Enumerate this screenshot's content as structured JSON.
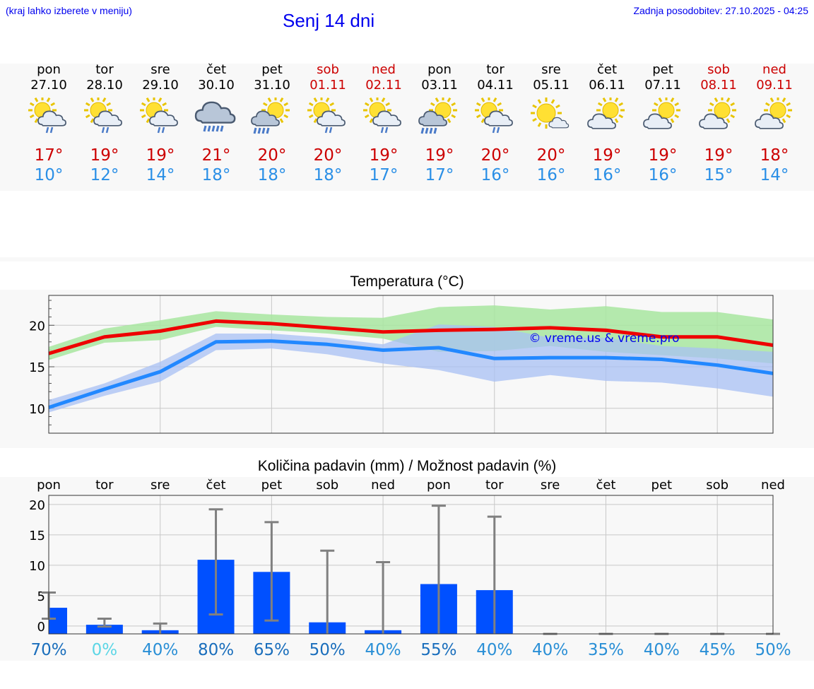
{
  "header": {
    "hint": "(kraj lahko izberete v meniju)",
    "title": "Senj 14 dni",
    "updated": "Zadnja posodobitev: 27.10.2025 - 04:25"
  },
  "days": [
    {
      "dow": "pon",
      "date": "27.10",
      "tmax": "17°",
      "tmin": "10°",
      "weekend": false,
      "icon": "sun-cloud-rain-icon"
    },
    {
      "dow": "tor",
      "date": "28.10",
      "tmax": "19°",
      "tmin": "12°",
      "weekend": false,
      "icon": "sun-cloud-rain-icon"
    },
    {
      "dow": "sre",
      "date": "29.10",
      "tmax": "19°",
      "tmin": "14°",
      "weekend": false,
      "icon": "sun-cloud-rain-icon"
    },
    {
      "dow": "čet",
      "date": "30.10",
      "tmax": "21°",
      "tmin": "18°",
      "weekend": false,
      "icon": "cloud-rain-icon"
    },
    {
      "dow": "pet",
      "date": "31.10",
      "tmax": "20°",
      "tmin": "18°",
      "weekend": false,
      "icon": "sun-cloud-heavy-rain-icon"
    },
    {
      "dow": "sob",
      "date": "01.11",
      "tmax": "20°",
      "tmin": "18°",
      "weekend": true,
      "icon": "sun-cloud-rain-icon"
    },
    {
      "dow": "ned",
      "date": "02.11",
      "tmax": "19°",
      "tmin": "17°",
      "weekend": true,
      "icon": "sun-cloud-rain-icon"
    },
    {
      "dow": "pon",
      "date": "03.11",
      "tmax": "19°",
      "tmin": "17°",
      "weekend": false,
      "icon": "sun-cloud-heavy-rain-icon"
    },
    {
      "dow": "tor",
      "date": "04.11",
      "tmax": "20°",
      "tmin": "16°",
      "weekend": false,
      "icon": "sun-cloud-rain-icon"
    },
    {
      "dow": "sre",
      "date": "05.11",
      "tmax": "20°",
      "tmin": "16°",
      "weekend": false,
      "icon": "sun-small-cloud-icon"
    },
    {
      "dow": "čet",
      "date": "06.11",
      "tmax": "19°",
      "tmin": "16°",
      "weekend": false,
      "icon": "sun-cloud-icon"
    },
    {
      "dow": "pet",
      "date": "07.11",
      "tmax": "19°",
      "tmin": "16°",
      "weekend": false,
      "icon": "sun-cloud-icon"
    },
    {
      "dow": "sob",
      "date": "08.11",
      "tmax": "19°",
      "tmin": "15°",
      "weekend": true,
      "icon": "sun-cloud-icon"
    },
    {
      "dow": "ned",
      "date": "09.11",
      "tmax": "18°",
      "tmin": "14°",
      "weekend": true,
      "icon": "sun-cloud-icon"
    }
  ],
  "colors": {
    "max": "#ee0000",
    "min": "#2288ff",
    "max_band": "#a8e6a0",
    "min_band": "#a8c0f4",
    "bar": "#0050ff",
    "whisker": "#808080",
    "watermark": "#0000ee"
  },
  "chart_data": [
    {
      "type": "line",
      "title": "Temperatura (°C)",
      "watermark": "© vreme.us & vreme.pro",
      "ylim": [
        7,
        23.6
      ],
      "yticks": [
        10,
        15,
        20
      ],
      "grid": true,
      "x": [
        0,
        1,
        2,
        3,
        4,
        5,
        6,
        7,
        8,
        9,
        10,
        11,
        12,
        13
      ],
      "series": [
        {
          "name": "max",
          "values": [
            16.6,
            18.6,
            19.3,
            20.5,
            20.2,
            19.7,
            19.2,
            19.4,
            19.5,
            19.7,
            19.4,
            18.6,
            18.6,
            17.6
          ]
        },
        {
          "name": "min",
          "values": [
            10.1,
            12.3,
            14.4,
            18.0,
            18.1,
            17.7,
            17.0,
            17.3,
            16.0,
            16.1,
            16.1,
            15.9,
            15.2,
            14.2
          ]
        }
      ],
      "bands": [
        {
          "name": "max_range",
          "lower": [
            15.8,
            17.9,
            18.2,
            19.8,
            19.4,
            19.0,
            18.4,
            16.8,
            16.9,
            17.5,
            16.8,
            16.4,
            16.0,
            15.4
          ],
          "upper": [
            17.4,
            19.6,
            20.6,
            21.7,
            21.3,
            21.0,
            20.9,
            22.2,
            22.4,
            21.9,
            22.3,
            21.6,
            21.6,
            20.7
          ]
        },
        {
          "name": "min_range",
          "lower": [
            9.5,
            11.5,
            13.2,
            17.0,
            17.2,
            16.5,
            15.4,
            14.6,
            13.2,
            14.0,
            13.3,
            13.1,
            12.4,
            11.4
          ],
          "upper": [
            11.0,
            13.0,
            15.6,
            19.0,
            19.0,
            18.5,
            17.7,
            20.1,
            19.8,
            18.5,
            18.5,
            17.5,
            17.2,
            16.8
          ]
        }
      ]
    },
    {
      "type": "bar",
      "title": "Količina padavin (mm) / Možnost padavin (%)",
      "categories": [
        "pon",
        "tor",
        "sre",
        "čet",
        "pet",
        "sob",
        "ned",
        "pon",
        "tor",
        "sre",
        "čet",
        "pet",
        "sob",
        "ned"
      ],
      "ylim": [
        -1.3,
        21.5
      ],
      "yticks": [
        0,
        5,
        10,
        15,
        20
      ],
      "values": [
        3.0,
        0.2,
        -0.7,
        10.9,
        8.9,
        0.6,
        -0.7,
        6.9,
        5.9,
        -1.3,
        -1.3,
        -1.3,
        -1.3,
        -1.3
      ],
      "error_low": [
        1.2,
        -0.1,
        null,
        1.9,
        0.9,
        null,
        null,
        null,
        null,
        null,
        null,
        null,
        null,
        null
      ],
      "error_high": [
        5.5,
        1.2,
        0.4,
        19.2,
        17.1,
        12.4,
        10.5,
        19.8,
        18.0,
        -1.3,
        -1.3,
        -1.3,
        -1.3,
        -1.3
      ],
      "probability": [
        "70%",
        "0%",
        "40%",
        "80%",
        "65%",
        "50%",
        "40%",
        "55%",
        "40%",
        "40%",
        "35%",
        "40%",
        "45%",
        "50%"
      ],
      "probability_colors": [
        "#1a6ebc",
        "#5cd6e6",
        "#2a8fd6",
        "#1a6ebc",
        "#1a6ebc",
        "#1a6ebc",
        "#2a8fd6",
        "#1a6ebc",
        "#2a8fd6",
        "#2a8fd6",
        "#2a8fd6",
        "#2a8fd6",
        "#2a8fd6",
        "#2a8fd6"
      ]
    }
  ]
}
